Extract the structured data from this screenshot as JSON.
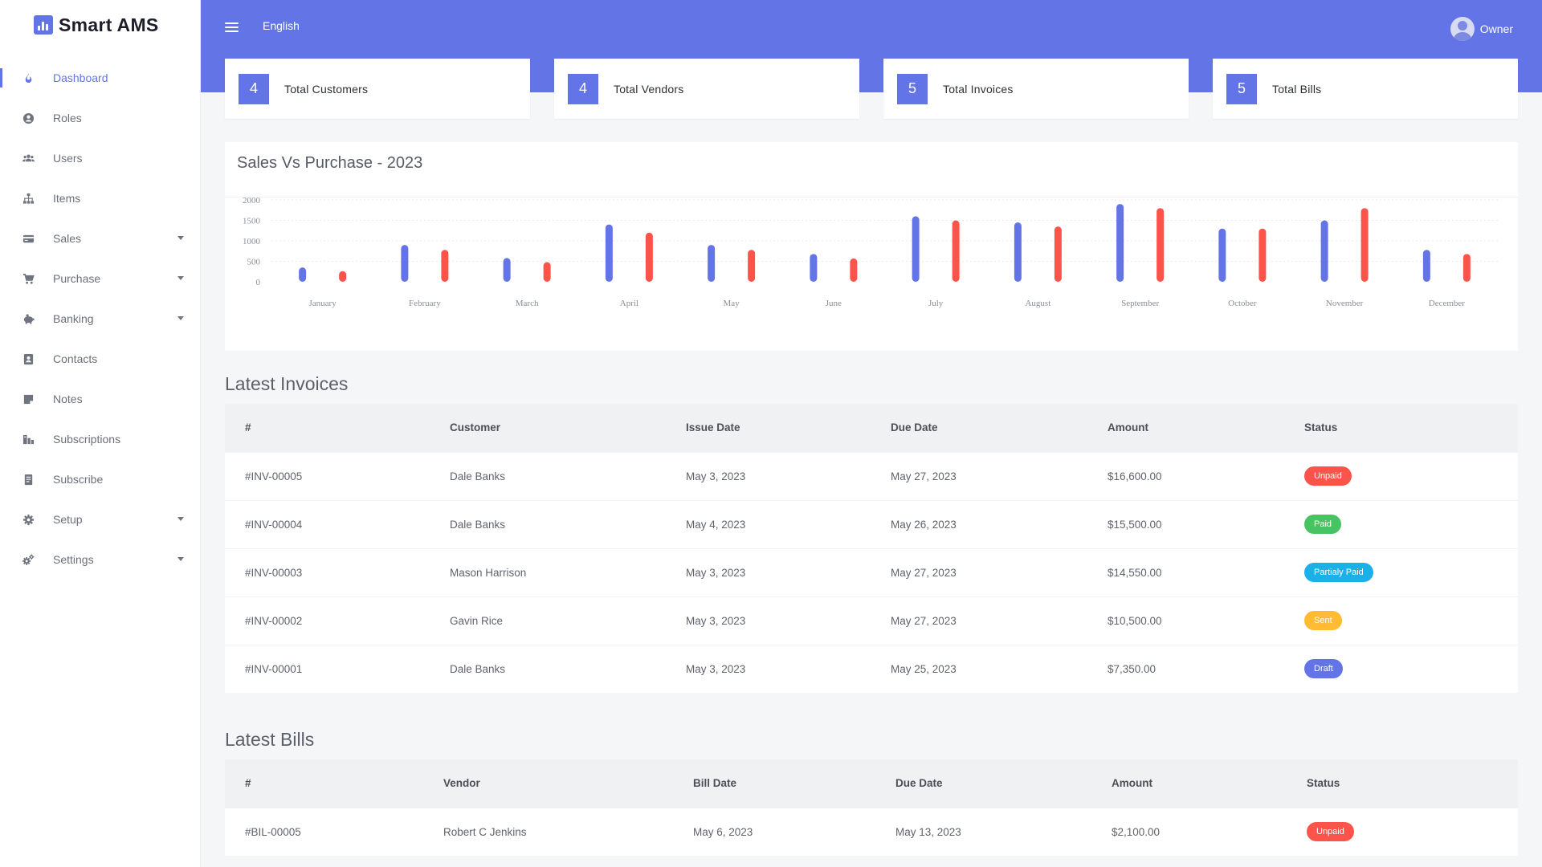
{
  "brand": {
    "name": "Smart AMS"
  },
  "sidebar": {
    "items": [
      {
        "label": "Dashboard",
        "icon": "fire-icon",
        "active": true,
        "caret": false
      },
      {
        "label": "Roles",
        "icon": "user-circle-icon",
        "active": false,
        "caret": false
      },
      {
        "label": "Users",
        "icon": "users-icon",
        "active": false,
        "caret": false
      },
      {
        "label": "Items",
        "icon": "sitemap-icon",
        "active": false,
        "caret": false
      },
      {
        "label": "Sales",
        "icon": "credit-card-icon",
        "active": false,
        "caret": true
      },
      {
        "label": "Purchase",
        "icon": "cart-icon",
        "active": false,
        "caret": true
      },
      {
        "label": "Banking",
        "icon": "piggy-bank-icon",
        "active": false,
        "caret": true
      },
      {
        "label": "Contacts",
        "icon": "address-book-icon",
        "active": false,
        "caret": false
      },
      {
        "label": "Notes",
        "icon": "note-icon",
        "active": false,
        "caret": false
      },
      {
        "label": "Subscriptions",
        "icon": "subscriptions-icon",
        "active": false,
        "caret": false
      },
      {
        "label": "Subscribe",
        "icon": "receipt-icon",
        "active": false,
        "caret": false
      },
      {
        "label": "Setup",
        "icon": "gear-icon",
        "active": false,
        "caret": true
      },
      {
        "label": "Settings",
        "icon": "gears-icon",
        "active": false,
        "caret": true
      }
    ]
  },
  "header": {
    "language": "English",
    "user": "Owner"
  },
  "stats": [
    {
      "value": "4",
      "label": "Total Customers"
    },
    {
      "value": "4",
      "label": "Total Vendors"
    },
    {
      "value": "5",
      "label": "Total Invoices"
    },
    {
      "value": "5",
      "label": "Total Bills"
    }
  ],
  "chart_data": {
    "type": "bar",
    "title": "Sales Vs Purchase - 2023",
    "categories": [
      "January",
      "February",
      "March",
      "April",
      "May",
      "June",
      "July",
      "August",
      "September",
      "October",
      "November",
      "December"
    ],
    "series": [
      {
        "values": [
          350,
          900,
          580,
          1400,
          900,
          680,
          1600,
          1450,
          1900,
          1300,
          1500,
          780
        ],
        "color": "#6375e6"
      },
      {
        "values": [
          260,
          780,
          480,
          1200,
          780,
          570,
          1500,
          1350,
          1800,
          1300,
          1800,
          680
        ],
        "color": "#fc544b"
      }
    ],
    "yticks": [
      0,
      500,
      1000,
      1500,
      2000
    ],
    "ylim": [
      0,
      2000
    ],
    "grid": true,
    "xlabel": "",
    "ylabel": ""
  },
  "invoices": {
    "title": "Latest Invoices",
    "columns": [
      "#",
      "Customer",
      "Issue Date",
      "Due Date",
      "Amount",
      "Status"
    ],
    "rows": [
      {
        "id": "#INV-00005",
        "customer": "Dale Banks",
        "issue": "May 3, 2023",
        "due": "May 27, 2023",
        "amount": "$16,600.00",
        "status": "Unpaid",
        "status_color": "#fc544b"
      },
      {
        "id": "#INV-00004",
        "customer": "Dale Banks",
        "issue": "May 4, 2023",
        "due": "May 26, 2023",
        "amount": "$15,500.00",
        "status": "Paid",
        "status_color": "#47c363"
      },
      {
        "id": "#INV-00003",
        "customer": "Mason Harrison",
        "issue": "May 3, 2023",
        "due": "May 27, 2023",
        "amount": "$14,550.00",
        "status": "Partialy Paid",
        "status_color": "#1bb1e8"
      },
      {
        "id": "#INV-00002",
        "customer": "Gavin Rice",
        "issue": "May 3, 2023",
        "due": "May 27, 2023",
        "amount": "$10,500.00",
        "status": "Sent",
        "status_color": "#ffbb33"
      },
      {
        "id": "#INV-00001",
        "customer": "Dale Banks",
        "issue": "May 3, 2023",
        "due": "May 25, 2023",
        "amount": "$7,350.00",
        "status": "Draft",
        "status_color": "#6375e6"
      }
    ]
  },
  "bills": {
    "title": "Latest Bills",
    "columns": [
      "#",
      "Vendor",
      "Bill Date",
      "Due Date",
      "Amount",
      "Status"
    ],
    "rows": [
      {
        "id": "#BIL-00005",
        "vendor": "Robert C Jenkins",
        "date": "May 6, 2023",
        "due": "May 13, 2023",
        "amount": "$2,100.00",
        "status": "Unpaid",
        "status_color": "#fc544b"
      }
    ]
  },
  "colors": {
    "accent": "#6375e6",
    "danger": "#fc544b"
  }
}
